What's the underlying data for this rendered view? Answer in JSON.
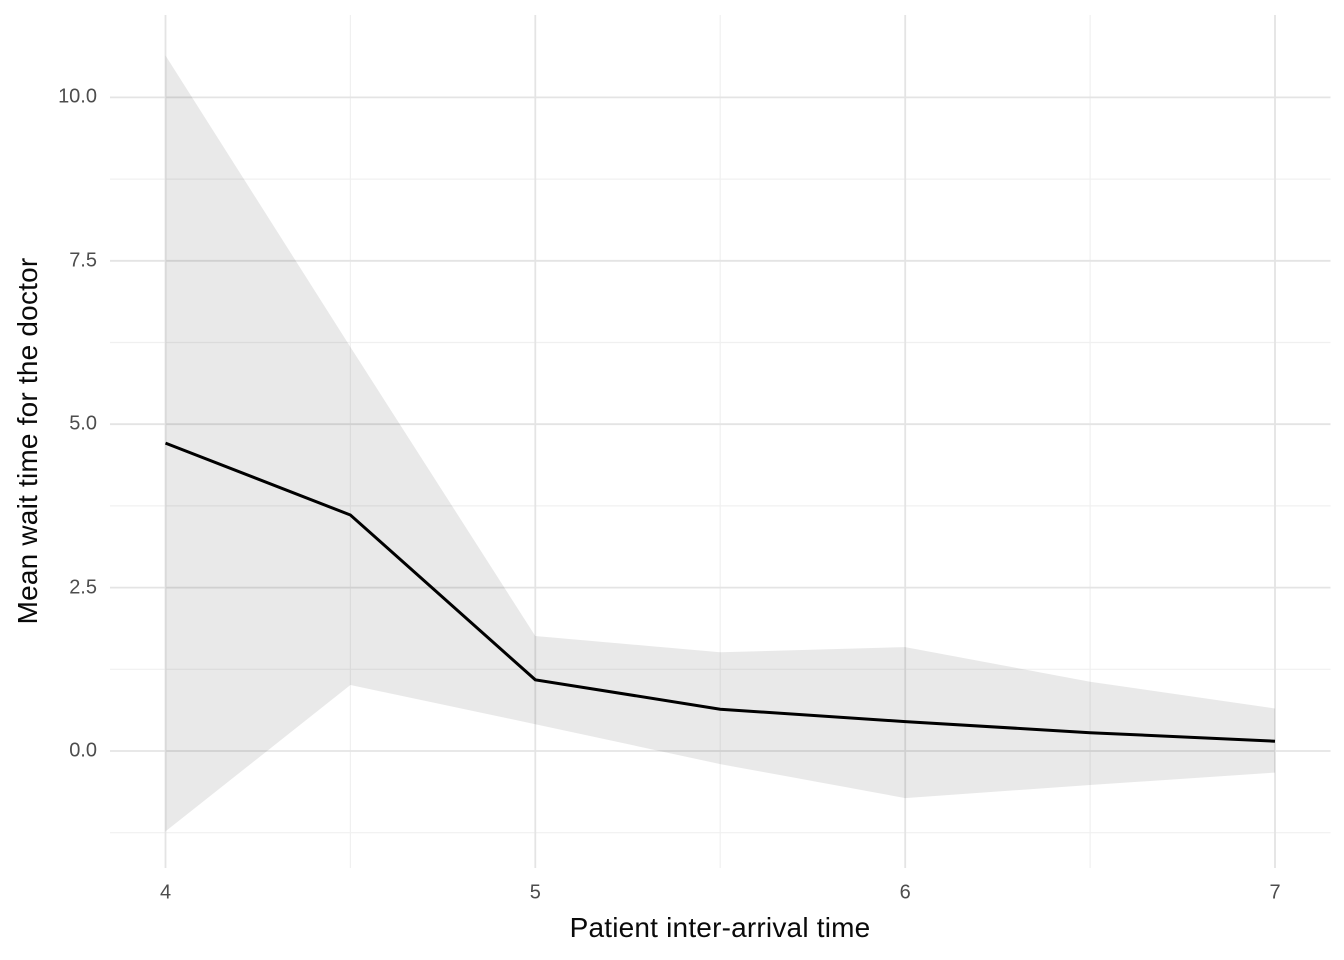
{
  "chart_data": {
    "type": "line",
    "title": "",
    "xlabel": "Patient inter-arrival time",
    "ylabel": "Mean wait time for the doctor",
    "x": [
      4,
      4.5,
      5,
      5.5,
      6,
      6.5,
      7
    ],
    "series": [
      {
        "name": "mean_wait_time",
        "role": "line",
        "values": [
          4.71,
          3.61,
          1.09,
          0.64,
          0.45,
          0.28,
          0.15
        ]
      },
      {
        "name": "band_upper",
        "role": "ribbon_upper",
        "values": [
          10.64,
          6.18,
          1.76,
          1.51,
          1.59,
          1.06,
          0.65
        ]
      },
      {
        "name": "band_lower",
        "role": "ribbon_lower",
        "values": [
          -1.23,
          1.01,
          0.41,
          -0.2,
          -0.72,
          -0.52,
          -0.33
        ]
      }
    ],
    "x_tick_values": [
      4,
      5,
      6,
      7
    ],
    "x_tick_labels": [
      "4",
      "5",
      "6",
      "7"
    ],
    "y_tick_values": [
      0,
      2.5,
      5,
      7.5,
      10
    ],
    "y_tick_labels": [
      "0.0",
      "2.5",
      "5.0",
      "7.5",
      "10.0"
    ],
    "x_minor_gridlines": [
      4.5,
      5.5,
      6.5
    ],
    "y_minor_gridlines": [
      -1.25,
      1.25,
      3.75,
      6.25,
      8.75
    ],
    "xlim": [
      3.85,
      7.15
    ],
    "ylim": [
      -1.79,
      11.26
    ],
    "grid": "major-and-minor",
    "legend": "none",
    "colors": {
      "line": "#000000",
      "ribbon": "rgba(0,0,0,0.086)",
      "grid_major": "#E4E4E4",
      "grid_minor": "#F0F0F0",
      "tick_label": "#4D4D4D",
      "axis_title": "#0A0A0A",
      "background": "#FFFFFF"
    }
  }
}
